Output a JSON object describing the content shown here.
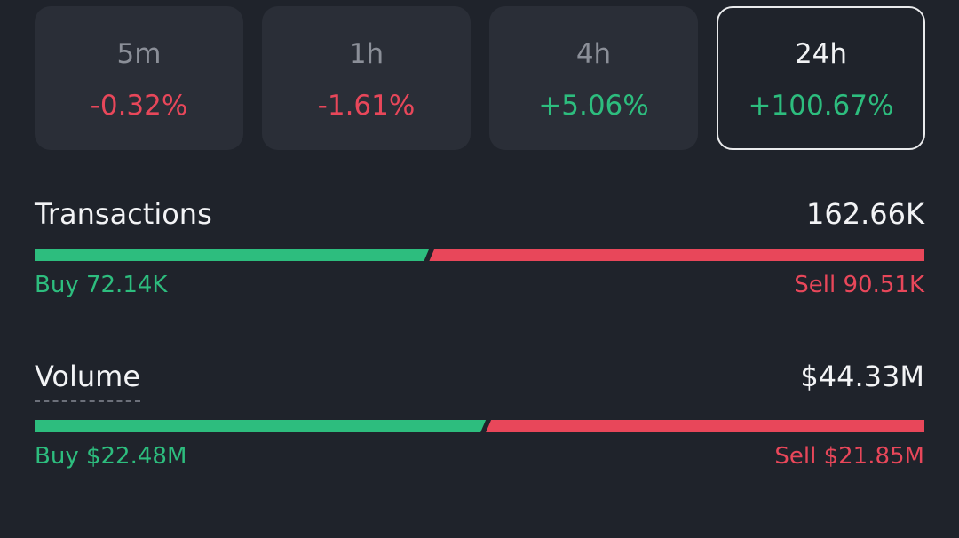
{
  "periods": [
    {
      "label": "5m",
      "change": "-0.32%",
      "selected": false
    },
    {
      "label": "1h",
      "change": "-1.61%",
      "selected": false
    },
    {
      "label": "4h",
      "change": "+5.06%",
      "selected": false
    },
    {
      "label": "24h",
      "change": "+100.67%",
      "selected": true
    }
  ],
  "transactions": {
    "title": "Transactions",
    "total": "162.66K",
    "buy": {
      "label": "Buy",
      "value": 72140,
      "value_label": "72.14K"
    },
    "sell": {
      "label": "Sell",
      "value": 90510,
      "value_label": "90.51K"
    }
  },
  "volume": {
    "title": "Volume",
    "total": "$44.33M",
    "buy": {
      "label": "Buy",
      "value": 22480000,
      "value_label": "$22.48M"
    },
    "sell": {
      "label": "Sell",
      "value": 21850000,
      "value_label": "$21.85M"
    }
  }
}
